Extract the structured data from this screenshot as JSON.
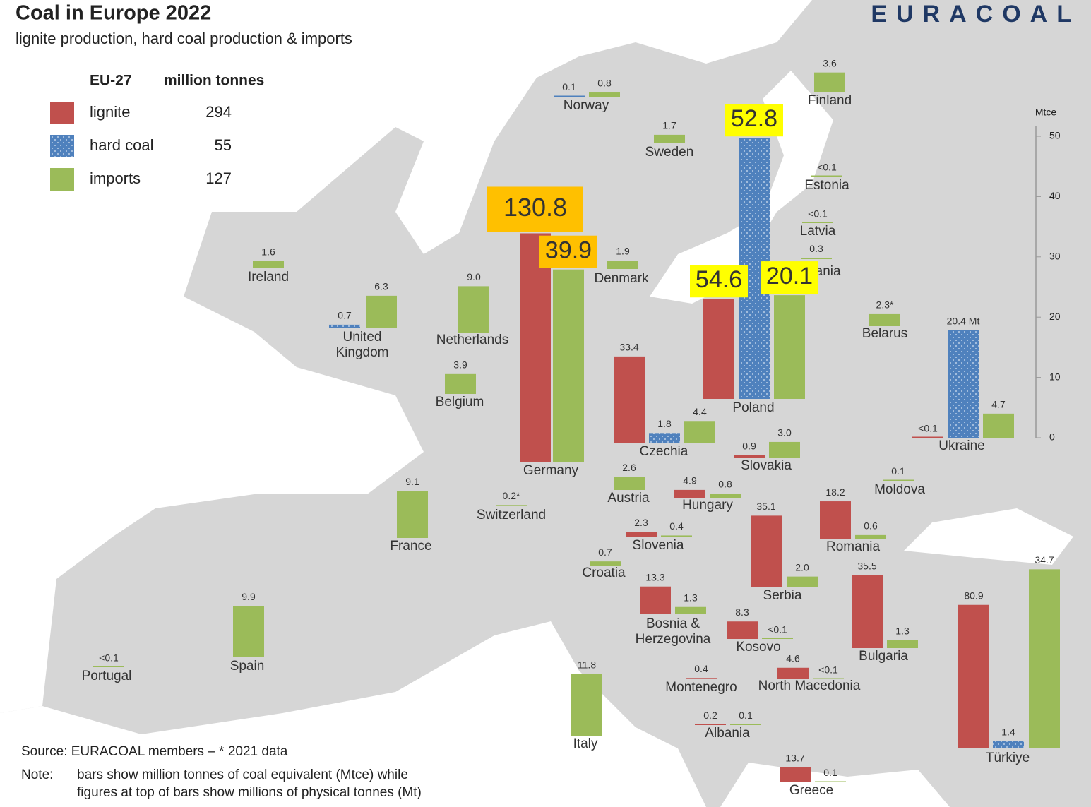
{
  "title": "Coal in Europe 2022",
  "subtitle": "lignite production, hard coal production & imports",
  "logo": "EURACOAL",
  "legend": {
    "region": "EU-27",
    "unit": "million tonnes",
    "items": [
      {
        "name": "lignite",
        "value": 294,
        "color": "#c0504d"
      },
      {
        "name": "hard coal",
        "value": 55,
        "color": "#4f81bd"
      },
      {
        "name": "imports",
        "value": 127,
        "color": "#9bbb59"
      }
    ]
  },
  "scale": {
    "unit": "Mtce",
    "ylim": [
      0,
      50
    ],
    "yticks": [
      0,
      10,
      20,
      30,
      40,
      50
    ]
  },
  "countries": [
    {
      "name": [
        "Norway"
      ],
      "bars": [
        {
          "kind": "hard coal",
          "label": "0.1",
          "mtce": 0.1
        },
        {
          "kind": "imports",
          "label": "0.8",
          "mtce": 0.7
        }
      ]
    },
    {
      "name": [
        "Sweden"
      ],
      "bars": [
        {
          "kind": "imports",
          "label": "1.7",
          "mtce": 1.3
        }
      ]
    },
    {
      "name": [
        "Finland"
      ],
      "bars": [
        {
          "kind": "imports",
          "label": "3.6",
          "mtce": 3.2
        }
      ]
    },
    {
      "name": [
        "Estonia"
      ],
      "bars": [
        {
          "kind": "imports",
          "label": "<0.1",
          "mtce": 0
        }
      ]
    },
    {
      "name": [
        "Latvia"
      ],
      "bars": [
        {
          "kind": "imports",
          "label": "<0.1",
          "mtce": 0
        }
      ]
    },
    {
      "name": [
        "Lithuania"
      ],
      "bars": [
        {
          "kind": "imports",
          "label": "0.3",
          "mtce": 0.2
        }
      ]
    },
    {
      "name": [
        "Ireland"
      ],
      "bars": [
        {
          "kind": "imports",
          "label": "1.6",
          "mtce": 1.2
        }
      ]
    },
    {
      "name": [
        "United",
        "Kingdom"
      ],
      "bars": [
        {
          "kind": "hard coal",
          "label": "0.7",
          "mtce": 0.6
        },
        {
          "kind": "imports",
          "label": "6.3",
          "mtce": 5.4
        }
      ]
    },
    {
      "name": [
        "Netherlands"
      ],
      "bars": [
        {
          "kind": "imports",
          "label": "9.0",
          "mtce": 7.8
        }
      ]
    },
    {
      "name": [
        "Belgium"
      ],
      "bars": [
        {
          "kind": "imports",
          "label": "3.9",
          "mtce": 3.3
        }
      ]
    },
    {
      "name": [
        "Denmark"
      ],
      "bars": [
        {
          "kind": "imports",
          "label": "1.9",
          "mtce": 1.4
        }
      ]
    },
    {
      "name": [
        "Germany"
      ],
      "bars": [
        {
          "kind": "lignite",
          "label": "130.8",
          "mtce": 38,
          "highlight": "#ffc000"
        },
        {
          "kind": "imports",
          "label": "39.9",
          "mtce": 32,
          "highlight": "#ffc000"
        }
      ]
    },
    {
      "name": [
        "Poland"
      ],
      "bars": [
        {
          "kind": "lignite",
          "label": "54.6",
          "mtce": 16.6,
          "highlight": "#ffff00"
        },
        {
          "kind": "hard coal",
          "label": "52.8",
          "mtce": 43.3,
          "highlight": "#ffff00"
        },
        {
          "kind": "imports",
          "label": "20.1",
          "mtce": 17.2,
          "highlight": "#ffff00"
        }
      ]
    },
    {
      "name": [
        "Belarus"
      ],
      "bars": [
        {
          "kind": "imports",
          "label": "2.3*",
          "mtce": 2
        }
      ]
    },
    {
      "name": [
        "Ukraine"
      ],
      "bars": [
        {
          "kind": "lignite",
          "label": "<0.1",
          "mtce": 0
        },
        {
          "kind": "hard coal",
          "label": "20.4 Mt",
          "mtce": 17.8
        },
        {
          "kind": "imports",
          "label": "4.7",
          "mtce": 4
        }
      ]
    },
    {
      "name": [
        "France"
      ],
      "bars": [
        {
          "kind": "imports",
          "label": "9.1",
          "mtce": 7.8
        }
      ]
    },
    {
      "name": [
        "Switzerland"
      ],
      "bars": [
        {
          "kind": "imports",
          "label": "0.2*",
          "mtce": 0.2
        }
      ]
    },
    {
      "name": [
        "Spain"
      ],
      "bars": [
        {
          "kind": "imports",
          "label": "9.9",
          "mtce": 8.5
        }
      ]
    },
    {
      "name": [
        "Portugal"
      ],
      "bars": [
        {
          "kind": "imports",
          "label": "<0.1",
          "mtce": 0
        }
      ]
    },
    {
      "name": [
        "Italy"
      ],
      "bars": [
        {
          "kind": "imports",
          "label": "11.8",
          "mtce": 10.2
        }
      ]
    },
    {
      "name": [
        "Czechia"
      ],
      "bars": [
        {
          "kind": "lignite",
          "label": "33.4",
          "mtce": 14.3
        },
        {
          "kind": "hard coal",
          "label": "1.8",
          "mtce": 1.6
        },
        {
          "kind": "imports",
          "label": "4.4",
          "mtce": 3.6
        }
      ]
    },
    {
      "name": [
        "Austria"
      ],
      "bars": [
        {
          "kind": "imports",
          "label": "2.6",
          "mtce": 2.2
        }
      ]
    },
    {
      "name": [
        "Slovakia"
      ],
      "bars": [
        {
          "kind": "lignite",
          "label": "0.9",
          "mtce": 0.5
        },
        {
          "kind": "imports",
          "label": "3.0",
          "mtce": 2.7
        }
      ]
    },
    {
      "name": [
        "Hungary"
      ],
      "bars": [
        {
          "kind": "lignite",
          "label": "4.9",
          "mtce": 1.3
        },
        {
          "kind": "imports",
          "label": "0.8",
          "mtce": 0.7
        }
      ]
    },
    {
      "name": [
        "Slovenia"
      ],
      "bars": [
        {
          "kind": "lignite",
          "label": "2.3",
          "mtce": 0.9
        },
        {
          "kind": "imports",
          "label": "0.4",
          "mtce": 0.3
        }
      ]
    },
    {
      "name": [
        "Croatia"
      ],
      "bars": [
        {
          "kind": "imports",
          "label": "0.7",
          "mtce": 0.8
        }
      ]
    },
    {
      "name": [
        "Bosnia &",
        "Herzegovina"
      ],
      "bars": [
        {
          "kind": "lignite",
          "label": "13.3",
          "mtce": 4.6
        },
        {
          "kind": "imports",
          "label": "1.3",
          "mtce": 1.2
        }
      ]
    },
    {
      "name": [
        "Serbia"
      ],
      "bars": [
        {
          "kind": "lignite",
          "label": "35.1",
          "mtce": 11.9
        },
        {
          "kind": "imports",
          "label": "2.0",
          "mtce": 1.8
        }
      ]
    },
    {
      "name": [
        "Romania"
      ],
      "bars": [
        {
          "kind": "lignite",
          "label": "18.2",
          "mtce": 6.2
        },
        {
          "kind": "imports",
          "label": "0.6",
          "mtce": 0.6
        }
      ]
    },
    {
      "name": [
        "Moldova"
      ],
      "bars": [
        {
          "kind": "imports",
          "label": "0.1",
          "mtce": 0.1
        }
      ]
    },
    {
      "name": [
        "Bulgaria"
      ],
      "bars": [
        {
          "kind": "lignite",
          "label": "35.5",
          "mtce": 12.1
        },
        {
          "kind": "imports",
          "label": "1.3",
          "mtce": 1.3
        }
      ]
    },
    {
      "name": [
        "Kosovo"
      ],
      "bars": [
        {
          "kind": "lignite",
          "label": "8.3",
          "mtce": 2.9
        },
        {
          "kind": "imports",
          "label": "<0.1",
          "mtce": 0
        }
      ]
    },
    {
      "name": [
        "Montenegro"
      ],
      "bars": [
        {
          "kind": "lignite",
          "label": "0.4",
          "mtce": 0.2
        }
      ]
    },
    {
      "name": [
        "North Macedonia"
      ],
      "bars": [
        {
          "kind": "lignite",
          "label": "4.6",
          "mtce": 1.9
        },
        {
          "kind": "imports",
          "label": "<0.1",
          "mtce": 0
        }
      ]
    },
    {
      "name": [
        "Albania"
      ],
      "bars": [
        {
          "kind": "lignite",
          "label": "0.2",
          "mtce": 0.1
        },
        {
          "kind": "imports",
          "label": "0.1",
          "mtce": 0.1
        }
      ]
    },
    {
      "name": [
        "Greece"
      ],
      "bars": [
        {
          "kind": "lignite",
          "label": "13.7",
          "mtce": 2.5
        },
        {
          "kind": "imports",
          "label": "0.1",
          "mtce": 0.1
        }
      ]
    },
    {
      "name": [
        "Türkiye"
      ],
      "bars": [
        {
          "kind": "lignite",
          "label": "80.9",
          "mtce": 23.8
        },
        {
          "kind": "hard coal",
          "label": "1.4",
          "mtce": 1.2
        },
        {
          "kind": "imports",
          "label": "34.7",
          "mtce": 29.7
        }
      ]
    }
  ],
  "source": "Source: EURACOAL members  –  * 2021 data",
  "note": {
    "label": "Note:",
    "lines": [
      "bars show million tonnes of coal equivalent (Mtce) while",
      "figures at top of bars show millions of physical tonnes (Mt)"
    ]
  }
}
